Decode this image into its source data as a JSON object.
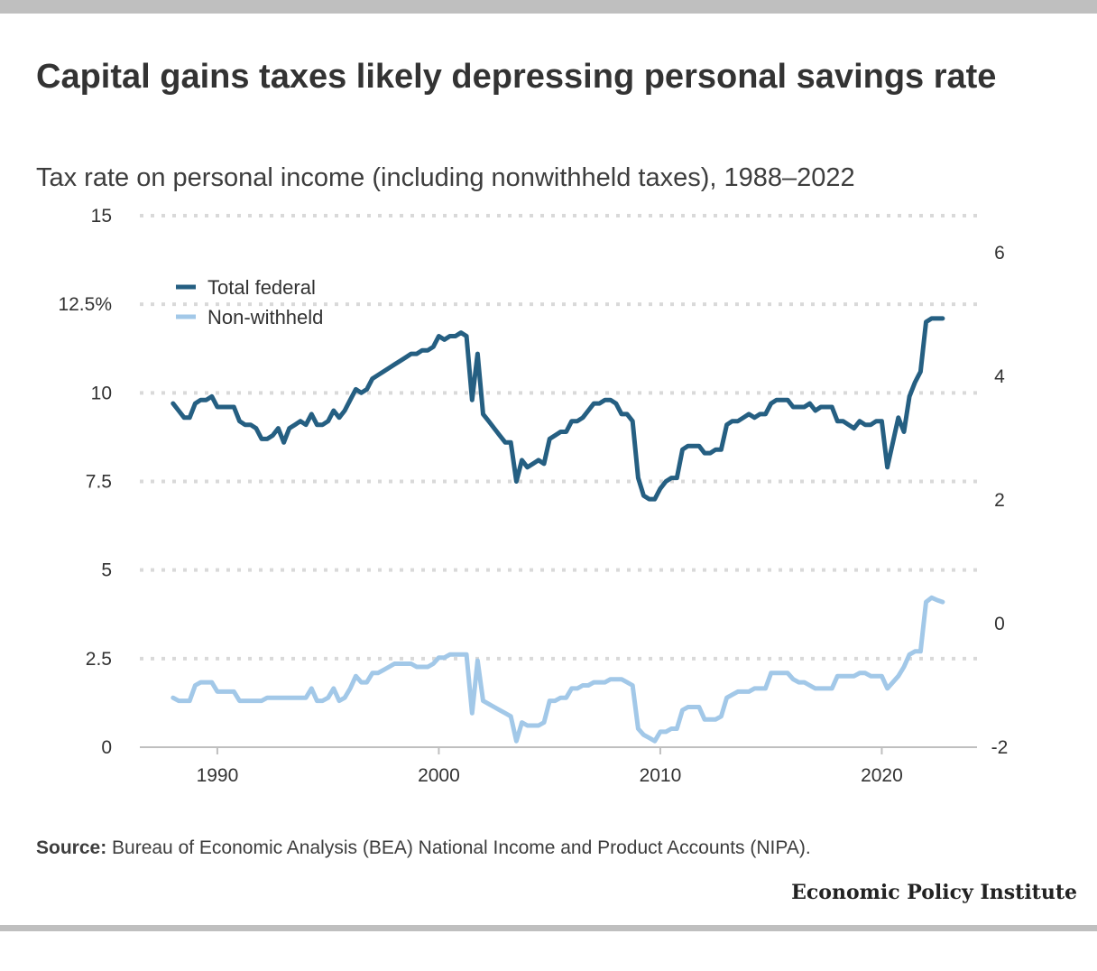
{
  "header": {
    "title": "Capital gains taxes likely depressing personal savings rate",
    "subtitle": "Tax rate on personal income (including nonwithheld taxes), 1988–2022"
  },
  "footer": {
    "source_label": "Source:",
    "source_text": " Bureau of Economic Analysis (BEA) National Income and Product Accounts (NIPA).",
    "brand": "Economic Policy Institute"
  },
  "colors": {
    "total_federal": "#255f82",
    "non_withheld": "#a2c8e8",
    "grid": "#d9d9d9",
    "axis": "#bfbfbf"
  },
  "chart_data": {
    "type": "line",
    "title": "Capital gains taxes likely depressing personal savings rate",
    "subtitle": "Tax rate on personal income (including nonwithheld taxes), 1988–2022",
    "xlim": [
      1986.5,
      2024.3
    ],
    "x_ticks": [
      1990,
      2000,
      2010,
      2020
    ],
    "x_tick_labels": [
      "1990",
      "2000",
      "2010",
      "2020"
    ],
    "y_left": {
      "ylim": [
        0,
        15
      ],
      "ticks": [
        0,
        2.5,
        5,
        7.5,
        10,
        12.5,
        15
      ],
      "tick_labels": [
        "0",
        "2.5",
        "5",
        "7.5",
        "10",
        "12.5%",
        "15"
      ]
    },
    "y_right": {
      "ylim": [
        -2,
        6.6
      ],
      "ticks": [
        -2,
        0,
        2,
        4,
        6
      ],
      "tick_labels": [
        "-2",
        "0",
        "2",
        "4",
        "6"
      ]
    },
    "grid": "horizontal dotted",
    "legend": {
      "position": "top-left",
      "entries": [
        "Total federal",
        "Non-withheld"
      ]
    },
    "series": [
      {
        "name": "Total federal",
        "axis": "left",
        "x": [
          1988.0,
          1988.25,
          1988.5,
          1988.75,
          1989.0,
          1989.25,
          1989.5,
          1989.75,
          1990.0,
          1990.25,
          1990.5,
          1990.75,
          1991.0,
          1991.25,
          1991.5,
          1991.75,
          1992.0,
          1992.25,
          1992.5,
          1992.75,
          1993.0,
          1993.25,
          1993.5,
          1993.75,
          1994.0,
          1994.25,
          1994.5,
          1994.75,
          1995.0,
          1995.25,
          1995.5,
          1995.75,
          1996.0,
          1996.25,
          1996.5,
          1996.75,
          1997.0,
          1997.25,
          1997.5,
          1997.75,
          1998.0,
          1998.25,
          1998.5,
          1998.75,
          1999.0,
          1999.25,
          1999.5,
          1999.75,
          2000.0,
          2000.25,
          2000.5,
          2000.75,
          2001.0,
          2001.25,
          2001.5,
          2001.75,
          2002.0,
          2002.25,
          2002.5,
          2002.75,
          2003.0,
          2003.25,
          2003.5,
          2003.75,
          2004.0,
          2004.25,
          2004.5,
          2004.75,
          2005.0,
          2005.25,
          2005.5,
          2005.75,
          2006.0,
          2006.25,
          2006.5,
          2006.75,
          2007.0,
          2007.25,
          2007.5,
          2007.75,
          2008.0,
          2008.25,
          2008.5,
          2008.75,
          2009.0,
          2009.25,
          2009.5,
          2009.75,
          2010.0,
          2010.25,
          2010.5,
          2010.75,
          2011.0,
          2011.25,
          2011.5,
          2011.75,
          2012.0,
          2012.25,
          2012.5,
          2012.75,
          2013.0,
          2013.25,
          2013.5,
          2013.75,
          2014.0,
          2014.25,
          2014.5,
          2014.75,
          2015.0,
          2015.25,
          2015.5,
          2015.75,
          2016.0,
          2016.25,
          2016.5,
          2016.75,
          2017.0,
          2017.25,
          2017.5,
          2017.75,
          2018.0,
          2018.25,
          2018.5,
          2018.75,
          2019.0,
          2019.25,
          2019.5,
          2019.75,
          2020.0,
          2020.25,
          2020.5,
          2020.75,
          2021.0,
          2021.25,
          2021.5,
          2021.75,
          2022.0,
          2022.25,
          2022.5,
          2022.75
        ],
        "y": [
          9.7,
          9.5,
          9.3,
          9.3,
          9.7,
          9.8,
          9.8,
          9.9,
          9.6,
          9.6,
          9.6,
          9.6,
          9.2,
          9.1,
          9.1,
          9.0,
          8.7,
          8.7,
          8.8,
          9.0,
          8.6,
          9.0,
          9.1,
          9.2,
          9.1,
          9.4,
          9.1,
          9.1,
          9.2,
          9.5,
          9.3,
          9.5,
          9.8,
          10.1,
          10.0,
          10.1,
          10.4,
          10.5,
          10.6,
          10.7,
          10.8,
          10.9,
          11.0,
          11.1,
          11.1,
          11.2,
          11.2,
          11.3,
          11.6,
          11.5,
          11.6,
          11.6,
          11.7,
          11.6,
          9.8,
          11.1,
          9.4,
          9.2,
          9.0,
          8.8,
          8.6,
          8.6,
          7.5,
          8.1,
          7.9,
          8.0,
          8.1,
          8.0,
          8.7,
          8.8,
          8.9,
          8.9,
          9.2,
          9.2,
          9.3,
          9.5,
          9.7,
          9.7,
          9.8,
          9.8,
          9.7,
          9.4,
          9.4,
          9.2,
          7.6,
          7.1,
          7.0,
          7.0,
          7.3,
          7.5,
          7.6,
          7.6,
          8.4,
          8.5,
          8.5,
          8.5,
          8.3,
          8.3,
          8.4,
          8.4,
          9.1,
          9.2,
          9.2,
          9.3,
          9.4,
          9.3,
          9.4,
          9.4,
          9.7,
          9.8,
          9.8,
          9.8,
          9.6,
          9.6,
          9.6,
          9.7,
          9.5,
          9.6,
          9.6,
          9.6,
          9.2,
          9.2,
          9.1,
          9.0,
          9.2,
          9.1,
          9.1,
          9.2,
          9.2,
          7.9,
          8.6,
          9.3,
          8.9,
          9.9,
          10.3,
          10.6,
          12.0,
          12.1,
          12.1,
          12.1
        ]
      },
      {
        "name": "Non-withheld",
        "axis": "right",
        "x": [
          1988.0,
          1988.25,
          1988.5,
          1988.75,
          1989.0,
          1989.25,
          1989.5,
          1989.75,
          1990.0,
          1990.25,
          1990.5,
          1990.75,
          1991.0,
          1991.25,
          1991.5,
          1991.75,
          1992.0,
          1992.25,
          1992.5,
          1992.75,
          1993.0,
          1993.25,
          1993.5,
          1993.75,
          1994.0,
          1994.25,
          1994.5,
          1994.75,
          1995.0,
          1995.25,
          1995.5,
          1995.75,
          1996.0,
          1996.25,
          1996.5,
          1996.75,
          1997.0,
          1997.25,
          1997.5,
          1997.75,
          1998.0,
          1998.25,
          1998.5,
          1998.75,
          1999.0,
          1999.25,
          1999.5,
          1999.75,
          2000.0,
          2000.25,
          2000.5,
          2000.75,
          2001.0,
          2001.25,
          2001.5,
          2001.75,
          2002.0,
          2002.25,
          2002.5,
          2002.75,
          2003.0,
          2003.25,
          2003.5,
          2003.75,
          2004.0,
          2004.25,
          2004.5,
          2004.75,
          2005.0,
          2005.25,
          2005.5,
          2005.75,
          2006.0,
          2006.25,
          2006.5,
          2006.75,
          2007.0,
          2007.25,
          2007.5,
          2007.75,
          2008.0,
          2008.25,
          2008.5,
          2008.75,
          2009.0,
          2009.25,
          2009.5,
          2009.75,
          2010.0,
          2010.25,
          2010.5,
          2010.75,
          2011.0,
          2011.25,
          2011.5,
          2011.75,
          2012.0,
          2012.25,
          2012.5,
          2012.75,
          2013.0,
          2013.25,
          2013.5,
          2013.75,
          2014.0,
          2014.25,
          2014.5,
          2014.75,
          2015.0,
          2015.25,
          2015.5,
          2015.75,
          2016.0,
          2016.25,
          2016.5,
          2016.75,
          2017.0,
          2017.25,
          2017.5,
          2017.75,
          2018.0,
          2018.25,
          2018.5,
          2018.75,
          2019.0,
          2019.25,
          2019.5,
          2019.75,
          2020.0,
          2020.25,
          2020.5,
          2020.75,
          2021.0,
          2021.25,
          2021.5,
          2021.75,
          2022.0,
          2022.25,
          2022.5,
          2022.75
        ],
        "y": [
          -1.2,
          -1.25,
          -1.25,
          -1.25,
          -1.0,
          -0.95,
          -0.95,
          -0.95,
          -1.1,
          -1.1,
          -1.1,
          -1.1,
          -1.25,
          -1.25,
          -1.25,
          -1.25,
          -1.25,
          -1.2,
          -1.2,
          -1.2,
          -1.2,
          -1.2,
          -1.2,
          -1.2,
          -1.2,
          -1.05,
          -1.25,
          -1.25,
          -1.2,
          -1.05,
          -1.25,
          -1.2,
          -1.05,
          -0.85,
          -0.95,
          -0.95,
          -0.8,
          -0.8,
          -0.75,
          -0.7,
          -0.65,
          -0.65,
          -0.65,
          -0.65,
          -0.7,
          -0.7,
          -0.7,
          -0.65,
          -0.55,
          -0.55,
          -0.5,
          -0.5,
          -0.5,
          -0.5,
          -1.45,
          -0.6,
          -1.25,
          -1.3,
          -1.35,
          -1.4,
          -1.45,
          -1.5,
          -1.9,
          -1.6,
          -1.65,
          -1.65,
          -1.65,
          -1.6,
          -1.25,
          -1.25,
          -1.2,
          -1.2,
          -1.05,
          -1.05,
          -1.0,
          -1.0,
          -0.95,
          -0.95,
          -0.95,
          -0.9,
          -0.9,
          -0.9,
          -0.95,
          -1.0,
          -1.7,
          -1.8,
          -1.85,
          -1.9,
          -1.75,
          -1.75,
          -1.7,
          -1.7,
          -1.4,
          -1.35,
          -1.35,
          -1.35,
          -1.55,
          -1.55,
          -1.55,
          -1.5,
          -1.2,
          -1.15,
          -1.1,
          -1.1,
          -1.1,
          -1.05,
          -1.05,
          -1.05,
          -0.8,
          -0.8,
          -0.8,
          -0.8,
          -0.9,
          -0.95,
          -0.95,
          -1.0,
          -1.05,
          -1.05,
          -1.05,
          -1.05,
          -0.85,
          -0.85,
          -0.85,
          -0.85,
          -0.8,
          -0.8,
          -0.85,
          -0.85,
          -0.85,
          -1.05,
          -0.95,
          -0.85,
          -0.7,
          -0.5,
          -0.45,
          -0.45,
          0.35,
          0.42,
          0.38,
          0.35
        ]
      }
    ]
  }
}
